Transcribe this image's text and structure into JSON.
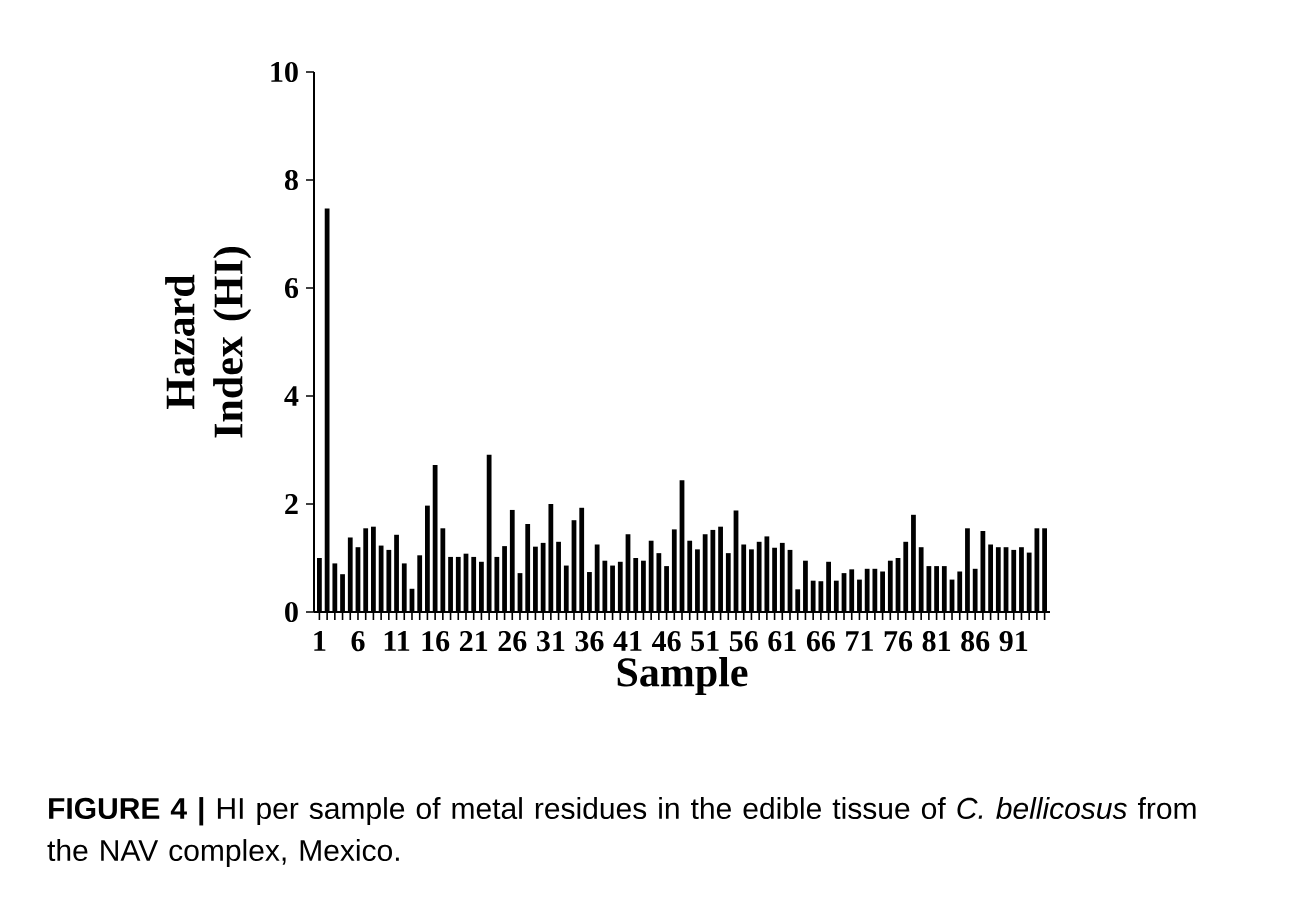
{
  "chart_data": {
    "type": "bar",
    "categories": [
      "1",
      null,
      null,
      null,
      null,
      "6",
      null,
      null,
      null,
      null,
      "11",
      null,
      null,
      null,
      null,
      "16",
      null,
      null,
      null,
      null,
      "21",
      null,
      null,
      null,
      null,
      "26",
      null,
      null,
      null,
      null,
      "31",
      null,
      null,
      null,
      null,
      "36",
      null,
      null,
      null,
      null,
      "41",
      null,
      null,
      null,
      null,
      "46",
      null,
      null,
      null,
      null,
      "51",
      null,
      null,
      null,
      null,
      "56",
      null,
      null,
      null,
      null,
      "61",
      null,
      null,
      null,
      null,
      "66",
      null,
      null,
      null,
      null,
      "71",
      null,
      null,
      null,
      null,
      "76",
      null,
      null,
      null,
      null,
      "81",
      null,
      null,
      null,
      null,
      "86",
      null,
      null,
      null,
      null,
      "91",
      null,
      null,
      null,
      null
    ],
    "values": [
      1.0,
      7.47,
      0.9,
      0.7,
      1.38,
      1.2,
      1.55,
      1.58,
      1.23,
      1.15,
      1.43,
      0.9,
      0.43,
      1.05,
      1.97,
      2.72,
      1.55,
      1.02,
      1.02,
      1.08,
      1.02,
      0.93,
      2.91,
      1.02,
      1.22,
      1.89,
      0.72,
      1.63,
      1.21,
      1.28,
      2.0,
      1.3,
      0.86,
      1.7,
      1.93,
      0.74,
      1.25,
      0.95,
      0.86,
      0.93,
      1.44,
      1.0,
      0.95,
      1.32,
      1.09,
      0.85,
      1.53,
      2.44,
      1.32,
      1.16,
      1.44,
      1.52,
      1.58,
      1.09,
      1.88,
      1.25,
      1.16,
      1.3,
      1.4,
      1.19,
      1.28,
      1.15,
      0.42,
      0.95,
      0.58,
      0.57,
      0.93,
      0.58,
      0.72,
      0.79,
      0.6,
      0.8,
      0.8,
      0.75,
      0.95,
      1.0,
      1.3,
      1.8,
      1.2,
      0.85,
      0.85,
      0.85,
      0.6,
      0.75,
      1.55,
      0.8,
      1.5,
      1.25,
      1.2,
      1.2,
      1.15,
      1.2,
      1.1,
      1.55,
      1.55
    ],
    "color": "#000000",
    "ylim": [
      0,
      10
    ],
    "yticks": [
      0,
      2,
      4,
      6,
      8,
      10
    ],
    "xlabel": "Sample",
    "ylabel": "Hazard Index (HI)",
    "annotations": [
      "**FIGURE 4 |** HI per sample of metal residues in the edible tissue of *C. bellicosus* from the NAV complex, Mexico."
    ]
  }
}
